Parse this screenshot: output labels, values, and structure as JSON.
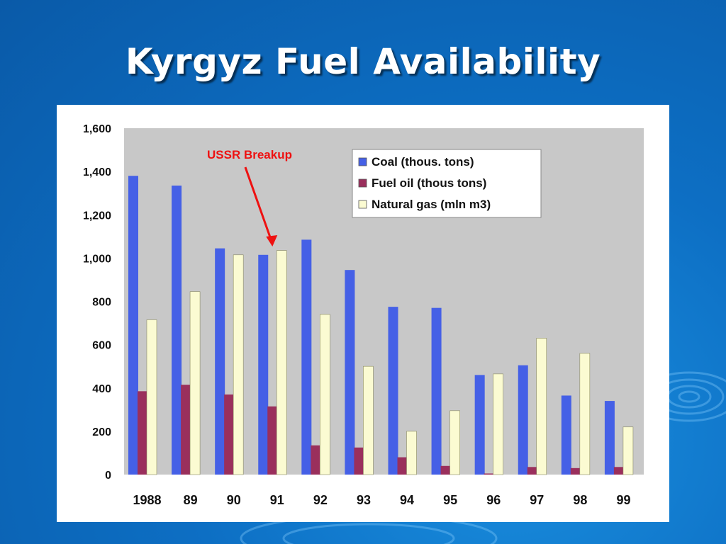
{
  "slide": {
    "title": "Kyrgyz Fuel Availability"
  },
  "colors": {
    "background": "#0d6fc4",
    "coal": "#4560e6",
    "fuel_oil": "#9a2f5c",
    "natural_gas": "#fbfbd2",
    "plot_area": "#c8c8c8",
    "annotation": "#ee1111"
  },
  "chart_data": {
    "type": "bar",
    "categories": [
      "1988",
      "89",
      "90",
      "91",
      "92",
      "93",
      "94",
      "95",
      "96",
      "97",
      "98",
      "99"
    ],
    "series": [
      {
        "name": "Coal (thous. tons)",
        "color": "#4560e6",
        "values": [
          1380,
          1335,
          1045,
          1015,
          1085,
          945,
          775,
          770,
          460,
          505,
          365,
          340
        ]
      },
      {
        "name": "Fuel oil (thous tons)",
        "color": "#9a2f5c",
        "values": [
          385,
          415,
          370,
          315,
          135,
          125,
          80,
          40,
          5,
          35,
          30,
          35
        ]
      },
      {
        "name": "Natural gas (mln m3)",
        "color": "#fbfbd2",
        "values": [
          715,
          845,
          1015,
          1035,
          740,
          500,
          200,
          295,
          465,
          630,
          560,
          220
        ]
      }
    ],
    "yticks": [
      "0",
      "200",
      "400",
      "600",
      "800",
      "1,000",
      "1,200",
      "1,400",
      "1,600"
    ],
    "ylim": [
      0,
      1600
    ],
    "legend_position": "top-right",
    "annotation": {
      "text": "USSR Breakup",
      "points_to_category": "91"
    }
  }
}
